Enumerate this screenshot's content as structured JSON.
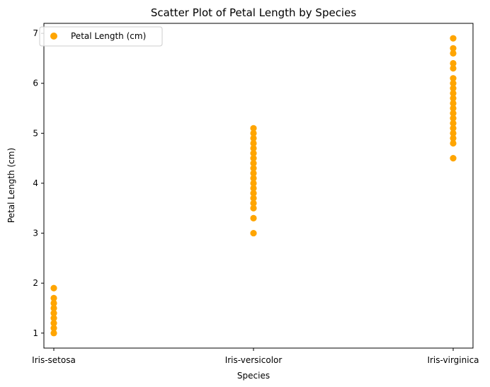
{
  "chart_data": {
    "type": "scatter",
    "title": "Scatter Plot of Petal Length by Species",
    "xlabel": "Species",
    "ylabel": "Petal Length (cm)",
    "categories": [
      "Iris-setosa",
      "Iris-versicolor",
      "Iris-virginica"
    ],
    "y_ticks": [
      1,
      2,
      3,
      4,
      5,
      6,
      7
    ],
    "ylim": [
      0.7,
      7.2
    ],
    "grid": false,
    "legend_position": "top-left",
    "color": "#FFA500",
    "series": [
      {
        "name": "Petal Length (cm)",
        "points": [
          {
            "x": "Iris-setosa",
            "y": 1.0
          },
          {
            "x": "Iris-setosa",
            "y": 1.1
          },
          {
            "x": "Iris-setosa",
            "y": 1.2
          },
          {
            "x": "Iris-setosa",
            "y": 1.3
          },
          {
            "x": "Iris-setosa",
            "y": 1.4
          },
          {
            "x": "Iris-setosa",
            "y": 1.5
          },
          {
            "x": "Iris-setosa",
            "y": 1.6
          },
          {
            "x": "Iris-setosa",
            "y": 1.7
          },
          {
            "x": "Iris-setosa",
            "y": 1.9
          },
          {
            "x": "Iris-versicolor",
            "y": 3.0
          },
          {
            "x": "Iris-versicolor",
            "y": 3.3
          },
          {
            "x": "Iris-versicolor",
            "y": 3.5
          },
          {
            "x": "Iris-versicolor",
            "y": 3.6
          },
          {
            "x": "Iris-versicolor",
            "y": 3.7
          },
          {
            "x": "Iris-versicolor",
            "y": 3.8
          },
          {
            "x": "Iris-versicolor",
            "y": 3.9
          },
          {
            "x": "Iris-versicolor",
            "y": 4.0
          },
          {
            "x": "Iris-versicolor",
            "y": 4.1
          },
          {
            "x": "Iris-versicolor",
            "y": 4.2
          },
          {
            "x": "Iris-versicolor",
            "y": 4.3
          },
          {
            "x": "Iris-versicolor",
            "y": 4.4
          },
          {
            "x": "Iris-versicolor",
            "y": 4.5
          },
          {
            "x": "Iris-versicolor",
            "y": 4.6
          },
          {
            "x": "Iris-versicolor",
            "y": 4.7
          },
          {
            "x": "Iris-versicolor",
            "y": 4.8
          },
          {
            "x": "Iris-versicolor",
            "y": 4.9
          },
          {
            "x": "Iris-versicolor",
            "y": 5.0
          },
          {
            "x": "Iris-versicolor",
            "y": 5.1
          },
          {
            "x": "Iris-virginica",
            "y": 4.5
          },
          {
            "x": "Iris-virginica",
            "y": 4.8
          },
          {
            "x": "Iris-virginica",
            "y": 4.9
          },
          {
            "x": "Iris-virginica",
            "y": 5.0
          },
          {
            "x": "Iris-virginica",
            "y": 5.1
          },
          {
            "x": "Iris-virginica",
            "y": 5.2
          },
          {
            "x": "Iris-virginica",
            "y": 5.3
          },
          {
            "x": "Iris-virginica",
            "y": 5.4
          },
          {
            "x": "Iris-virginica",
            "y": 5.5
          },
          {
            "x": "Iris-virginica",
            "y": 5.6
          },
          {
            "x": "Iris-virginica",
            "y": 5.7
          },
          {
            "x": "Iris-virginica",
            "y": 5.8
          },
          {
            "x": "Iris-virginica",
            "y": 5.9
          },
          {
            "x": "Iris-virginica",
            "y": 6.0
          },
          {
            "x": "Iris-virginica",
            "y": 6.1
          },
          {
            "x": "Iris-virginica",
            "y": 6.3
          },
          {
            "x": "Iris-virginica",
            "y": 6.4
          },
          {
            "x": "Iris-virginica",
            "y": 6.6
          },
          {
            "x": "Iris-virginica",
            "y": 6.7
          },
          {
            "x": "Iris-virginica",
            "y": 6.9
          }
        ]
      }
    ]
  }
}
